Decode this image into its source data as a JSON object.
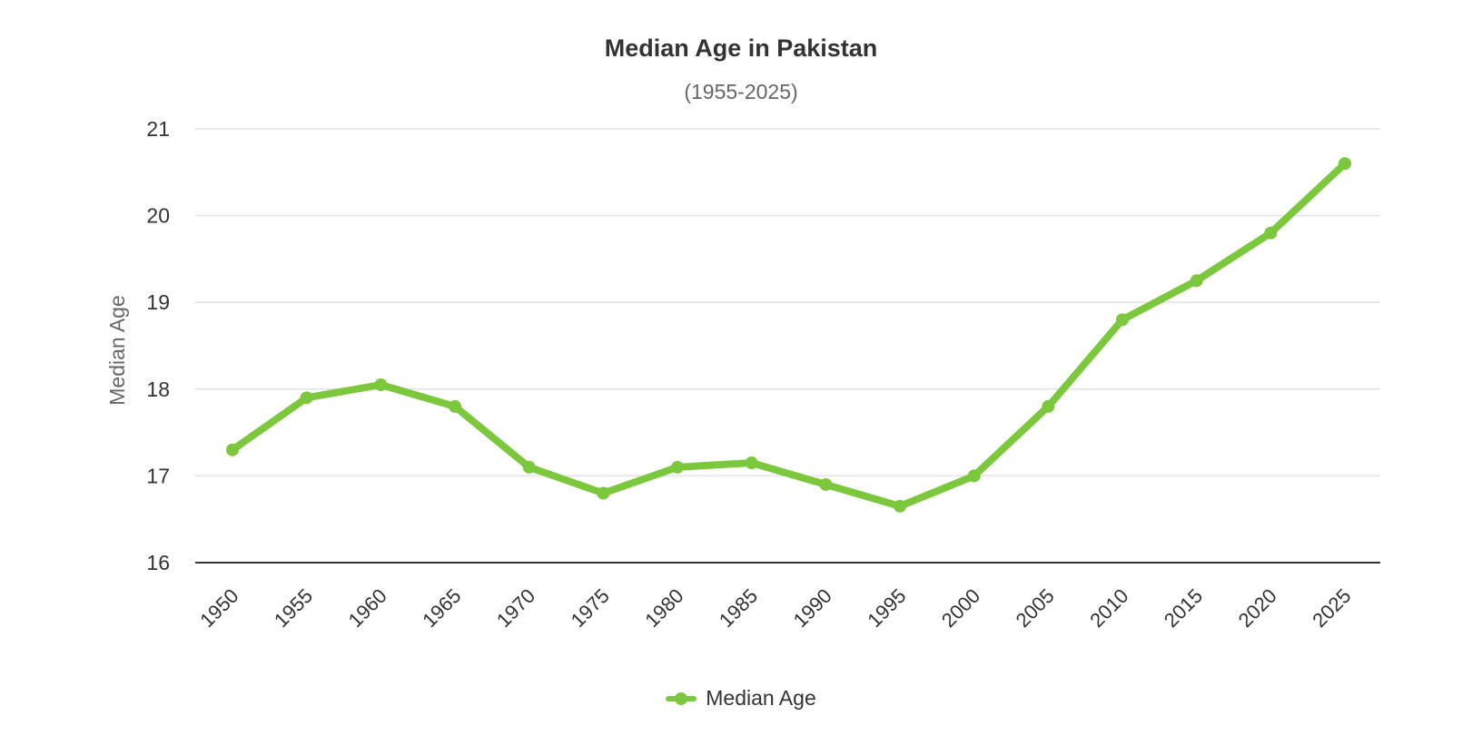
{
  "title": "Median Age in Pakistan",
  "subtitle": "(1955-2025)",
  "legend": {
    "label": "Median Age",
    "color": "#7cc83c"
  },
  "chart_data": {
    "type": "line",
    "title": "Median Age in Pakistan",
    "subtitle": "(1955-2025)",
    "xlabel": "",
    "ylabel": "Median Age",
    "ylim": [
      16,
      21
    ],
    "yticks": [
      16,
      17,
      18,
      19,
      20,
      21
    ],
    "grid": true,
    "legend_position": "bottom",
    "categories": [
      "1950",
      "1955",
      "1960",
      "1965",
      "1970",
      "1975",
      "1980",
      "1985",
      "1990",
      "1995",
      "2000",
      "2005",
      "2010",
      "2015",
      "2020",
      "2025"
    ],
    "series": [
      {
        "name": "Median Age",
        "color": "#7cc83c",
        "values": [
          17.3,
          17.9,
          18.05,
          17.8,
          17.1,
          16.8,
          17.1,
          17.15,
          16.9,
          16.65,
          17.0,
          17.8,
          18.8,
          19.25,
          19.8,
          20.6
        ]
      }
    ]
  }
}
